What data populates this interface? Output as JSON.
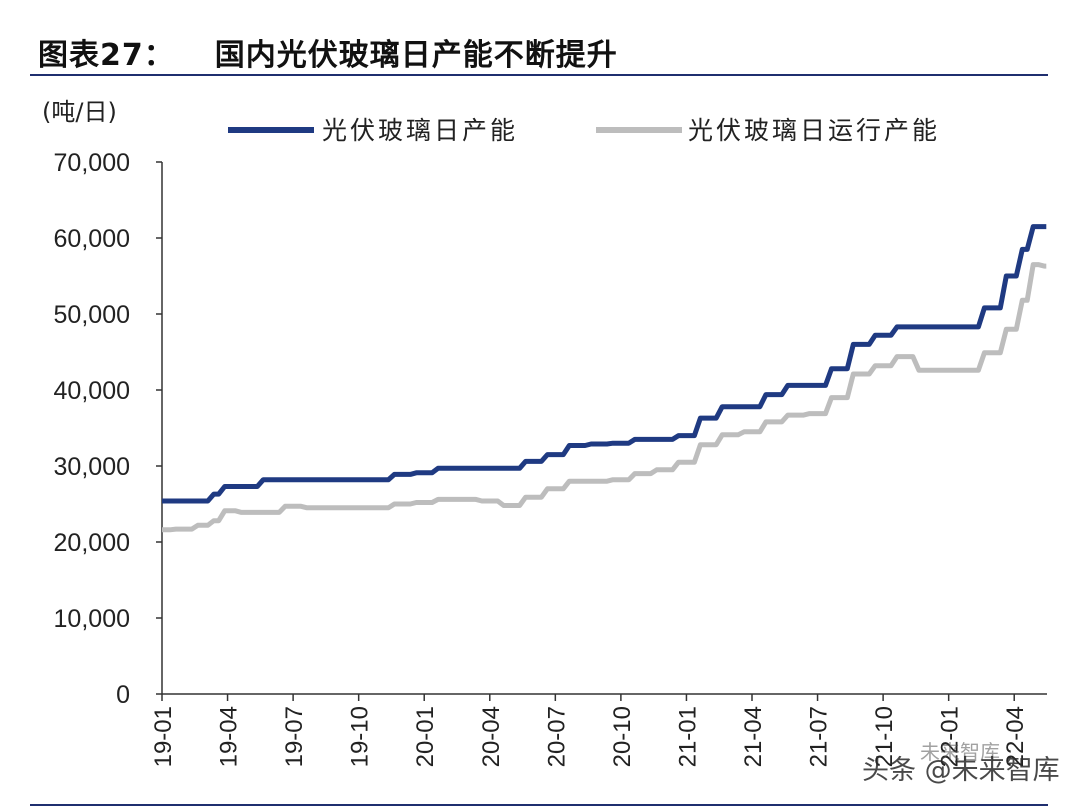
{
  "header": {
    "figure_label": "图表27：",
    "title": "国内光伏玻璃日产能不断提升"
  },
  "watermark": {
    "text": "头条 @未来智库",
    "overlay": "未来智库"
  },
  "colors": {
    "capacity": "#1f3a82",
    "running": "#bdbdbd",
    "rule": "#1f2f6f"
  },
  "chart_data": {
    "type": "line",
    "unit_label": "(吨/日)",
    "ylim": [
      0,
      70000
    ],
    "yticks": [
      0,
      10000,
      20000,
      30000,
      40000,
      50000,
      60000,
      70000
    ],
    "ytick_labels": [
      "0",
      "10,000",
      "20,000",
      "30,000",
      "40,000",
      "50,000",
      "60,000",
      "70,000"
    ],
    "xticks": [
      "19-01",
      "19-04",
      "19-07",
      "19-10",
      "20-01",
      "20-04",
      "20-07",
      "20-10",
      "21-01",
      "21-04",
      "21-07",
      "21-10",
      "22-01",
      "22-04"
    ],
    "x_range": [
      "2019-01",
      "2022-05"
    ],
    "legend_position": "top",
    "grid": false,
    "series": [
      {
        "name": "光伏玻璃日产能",
        "points": [
          [
            "2019-01",
            25400
          ],
          [
            "2019-02",
            25400
          ],
          [
            "2019-03",
            25400
          ],
          [
            "2019-03-15",
            26300
          ],
          [
            "2019-04",
            27300
          ],
          [
            "2019-05",
            27300
          ],
          [
            "2019-06",
            28200
          ],
          [
            "2019-07",
            28200
          ],
          [
            "2019-08",
            28200
          ],
          [
            "2019-09",
            28200
          ],
          [
            "2019-10",
            28200
          ],
          [
            "2019-11",
            28200
          ],
          [
            "2019-12",
            28900
          ],
          [
            "2020-01",
            29100
          ],
          [
            "2020-02",
            29700
          ],
          [
            "2020-03",
            29700
          ],
          [
            "2020-04",
            29700
          ],
          [
            "2020-05",
            29700
          ],
          [
            "2020-06",
            30600
          ],
          [
            "2020-07",
            31500
          ],
          [
            "2020-08",
            32700
          ],
          [
            "2020-09",
            32900
          ],
          [
            "2020-10",
            33000
          ],
          [
            "2020-11",
            33500
          ],
          [
            "2020-12",
            33500
          ],
          [
            "2021-01",
            34000
          ],
          [
            "2021-02",
            36300
          ],
          [
            "2021-03",
            37800
          ],
          [
            "2021-04",
            37800
          ],
          [
            "2021-05",
            39400
          ],
          [
            "2021-06",
            40600
          ],
          [
            "2021-07",
            40600
          ],
          [
            "2021-08",
            42800
          ],
          [
            "2021-09",
            46000
          ],
          [
            "2021-10",
            47200
          ],
          [
            "2021-11",
            48300
          ],
          [
            "2021-12",
            48300
          ],
          [
            "2022-01",
            48300
          ],
          [
            "2022-02",
            48300
          ],
          [
            "2022-03",
            50800
          ],
          [
            "2022-04",
            55000
          ],
          [
            "2022-04-15",
            58500
          ],
          [
            "2022-05",
            61500
          ],
          [
            "2022-05-15",
            61500
          ]
        ]
      },
      {
        "name": "光伏玻璃日运行产能",
        "points": [
          [
            "2019-01",
            21600
          ],
          [
            "2019-02",
            21700
          ],
          [
            "2019-03",
            22200
          ],
          [
            "2019-03-15",
            22800
          ],
          [
            "2019-04",
            24100
          ],
          [
            "2019-05",
            23900
          ],
          [
            "2019-06",
            23900
          ],
          [
            "2019-07",
            24700
          ],
          [
            "2019-08",
            24500
          ],
          [
            "2019-09",
            24500
          ],
          [
            "2019-10",
            24500
          ],
          [
            "2019-11",
            24500
          ],
          [
            "2019-12",
            25000
          ],
          [
            "2020-01",
            25200
          ],
          [
            "2020-02",
            25600
          ],
          [
            "2020-03",
            25600
          ],
          [
            "2020-04",
            25400
          ],
          [
            "2020-05",
            24800
          ],
          [
            "2020-06",
            25900
          ],
          [
            "2020-07",
            27000
          ],
          [
            "2020-08",
            28000
          ],
          [
            "2020-09",
            28000
          ],
          [
            "2020-10",
            28200
          ],
          [
            "2020-11",
            29000
          ],
          [
            "2020-12",
            29500
          ],
          [
            "2021-01",
            30500
          ],
          [
            "2021-02",
            32800
          ],
          [
            "2021-03",
            34100
          ],
          [
            "2021-04",
            34500
          ],
          [
            "2021-05",
            35800
          ],
          [
            "2021-06",
            36700
          ],
          [
            "2021-07",
            36900
          ],
          [
            "2021-08",
            39000
          ],
          [
            "2021-09",
            42100
          ],
          [
            "2021-10",
            43200
          ],
          [
            "2021-11",
            44400
          ],
          [
            "2021-12",
            42600
          ],
          [
            "2022-01",
            42600
          ],
          [
            "2022-02",
            42600
          ],
          [
            "2022-03",
            44900
          ],
          [
            "2022-04",
            48000
          ],
          [
            "2022-04-15",
            51800
          ],
          [
            "2022-05",
            56500
          ],
          [
            "2022-05-15",
            56300
          ]
        ]
      }
    ]
  }
}
